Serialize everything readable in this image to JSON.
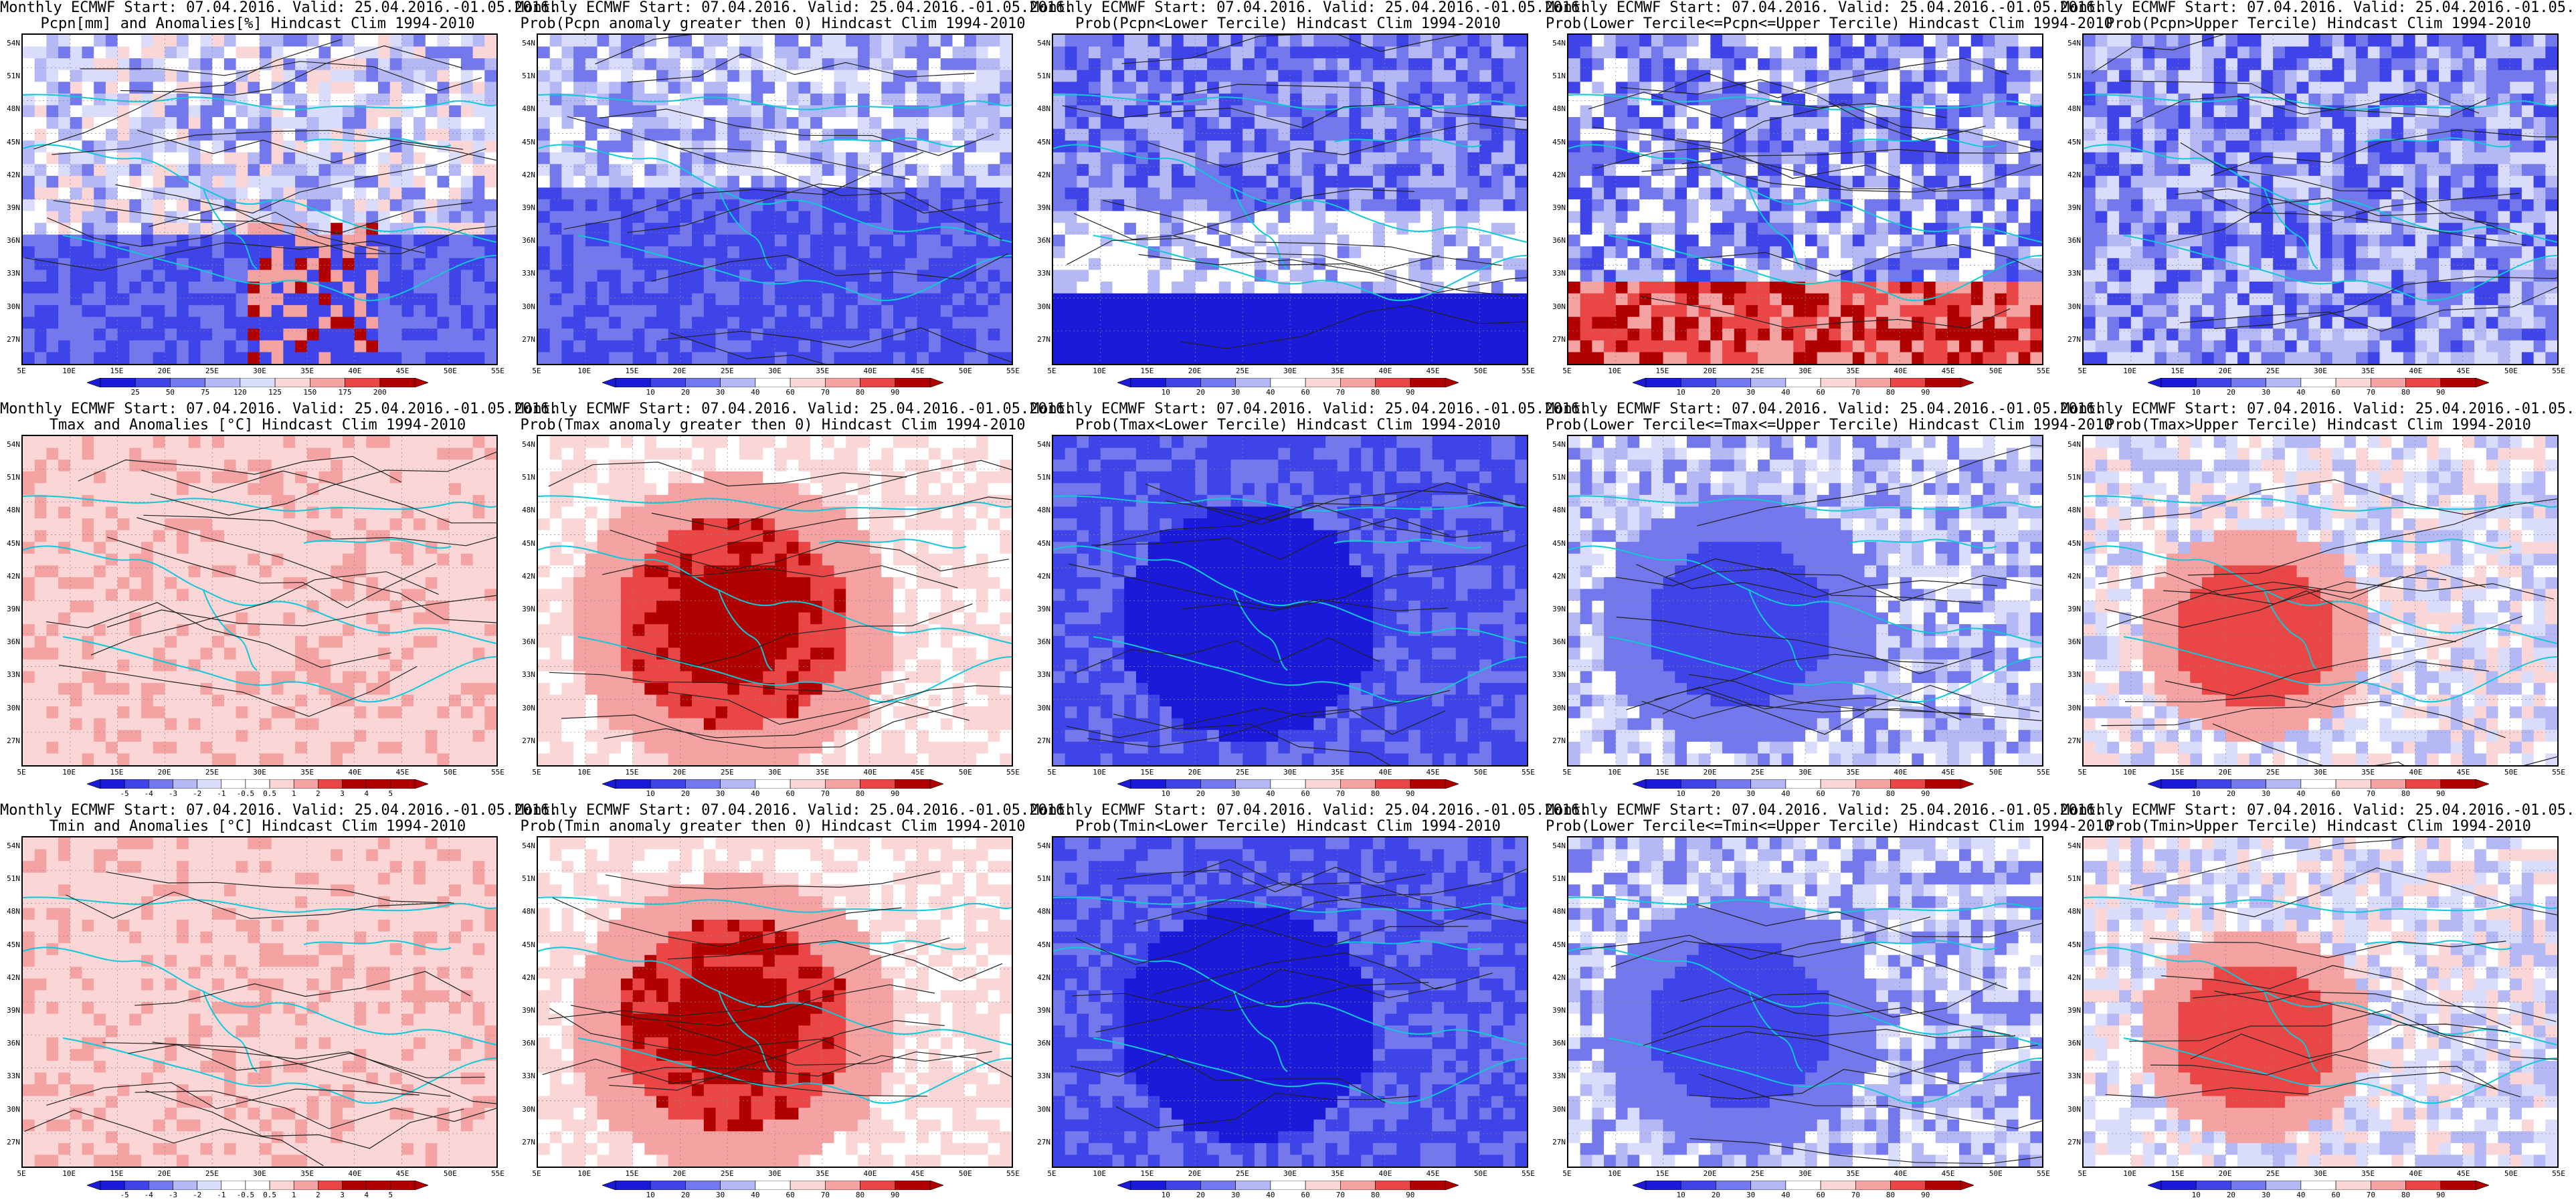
{
  "common_title": "Monthly ECMWF Start: 07.04.2016. Valid: 25.04.2016.-01.05.2016.",
  "lat_labels": [
    "54N",
    "51N",
    "48N",
    "45N",
    "42N",
    "39N",
    "36N",
    "33N",
    "30N",
    "27N"
  ],
  "lon_labels": [
    "5E",
    "10E",
    "15E",
    "20E",
    "25E",
    "30E",
    "35E",
    "40E",
    "45E",
    "50E",
    "55E"
  ],
  "colors": {
    "deep_blue": "#1a1ad8",
    "blue": "#3f44e8",
    "mid_blue": "#7378ec",
    "light_blue": "#b4b8f5",
    "pale_blue": "#dadcfb",
    "white": "#ffffff",
    "pale_red": "#fbd6d6",
    "light_red": "#f4a2a2",
    "red": "#ea4646",
    "dark_red": "#b00000",
    "coast": "#10c8d8",
    "contour": "#222222"
  },
  "panels": [
    {
      "subtitle": "Pcpn[mm] and Anomalies[%] Hindcast Clim 1994-2010",
      "bar": "pcpn_anom",
      "pattern": "pcpn_anom"
    },
    {
      "subtitle": "Prob(Pcpn anomaly greater then 0) Hindcast Clim 1994-2010",
      "bar": "prob",
      "pattern": "blue_south"
    },
    {
      "subtitle": "Prob(Pcpn<Lower Tercile) Hindcast Clim 1994-2010",
      "bar": "prob",
      "pattern": "blue_white"
    },
    {
      "subtitle": "Prob(Lower Tercile<=Pcpn<=Upper Tercile) Hindcast Clim 1994-2010",
      "bar": "prob",
      "pattern": "mixed_red_south"
    },
    {
      "subtitle": "Prob(Pcpn>Upper Tercile) Hindcast Clim 1994-2010",
      "bar": "prob",
      "pattern": "blue_mix"
    },
    {
      "subtitle": "Tmax and Anomalies [°C] Hindcast Clim 1994-2010",
      "bar": "temp_anom",
      "pattern": "pale_red"
    },
    {
      "subtitle": "Prob(Tmax anomaly greater then 0) Hindcast Clim 1994-2010",
      "bar": "prob",
      "pattern": "red_core"
    },
    {
      "subtitle": "Prob(Tmax<Lower Tercile) Hindcast Clim 1994-2010",
      "bar": "prob",
      "pattern": "deep_blue"
    },
    {
      "subtitle": "Prob(Lower Tercile<=Tmax<=Upper Tercile) Hindcast Clim 1994-2010",
      "bar": "prob",
      "pattern": "blue_core"
    },
    {
      "subtitle": "Prob(Tmax>Upper Tercile) Hindcast Clim 1994-2010",
      "bar": "prob",
      "pattern": "red_core_light"
    },
    {
      "subtitle": "Tmin and Anomalies [°C] Hindcast Clim 1994-2010",
      "bar": "temp_anom",
      "pattern": "pale_red"
    },
    {
      "subtitle": "Prob(Tmin anomaly greater then 0) Hindcast Clim 1994-2010",
      "bar": "prob",
      "pattern": "red_core"
    },
    {
      "subtitle": "Prob(Tmin<Lower Tercile) Hindcast Clim 1994-2010",
      "bar": "prob",
      "pattern": "deep_blue"
    },
    {
      "subtitle": "Prob(Lower Tercile<=Tmin<=Upper Tercile) Hindcast Clim 1994-2010",
      "bar": "prob",
      "pattern": "blue_core"
    },
    {
      "subtitle": "Prob(Tmin>Upper Tercile) Hindcast Clim 1994-2010",
      "bar": "prob",
      "pattern": "red_core_light"
    }
  ],
  "colorbars": {
    "pcpn_anom": [
      "25",
      "50",
      "75",
      "120",
      "125",
      "150",
      "175",
      "200"
    ],
    "prob": [
      "10",
      "20",
      "30",
      "40",
      "60",
      "70",
      "80",
      "90"
    ],
    "temp_anom": [
      "-5",
      "-4",
      "-3",
      "-2",
      "-1",
      "-0.5",
      "0.5",
      "1",
      "2",
      "3",
      "4",
      "5"
    ]
  }
}
